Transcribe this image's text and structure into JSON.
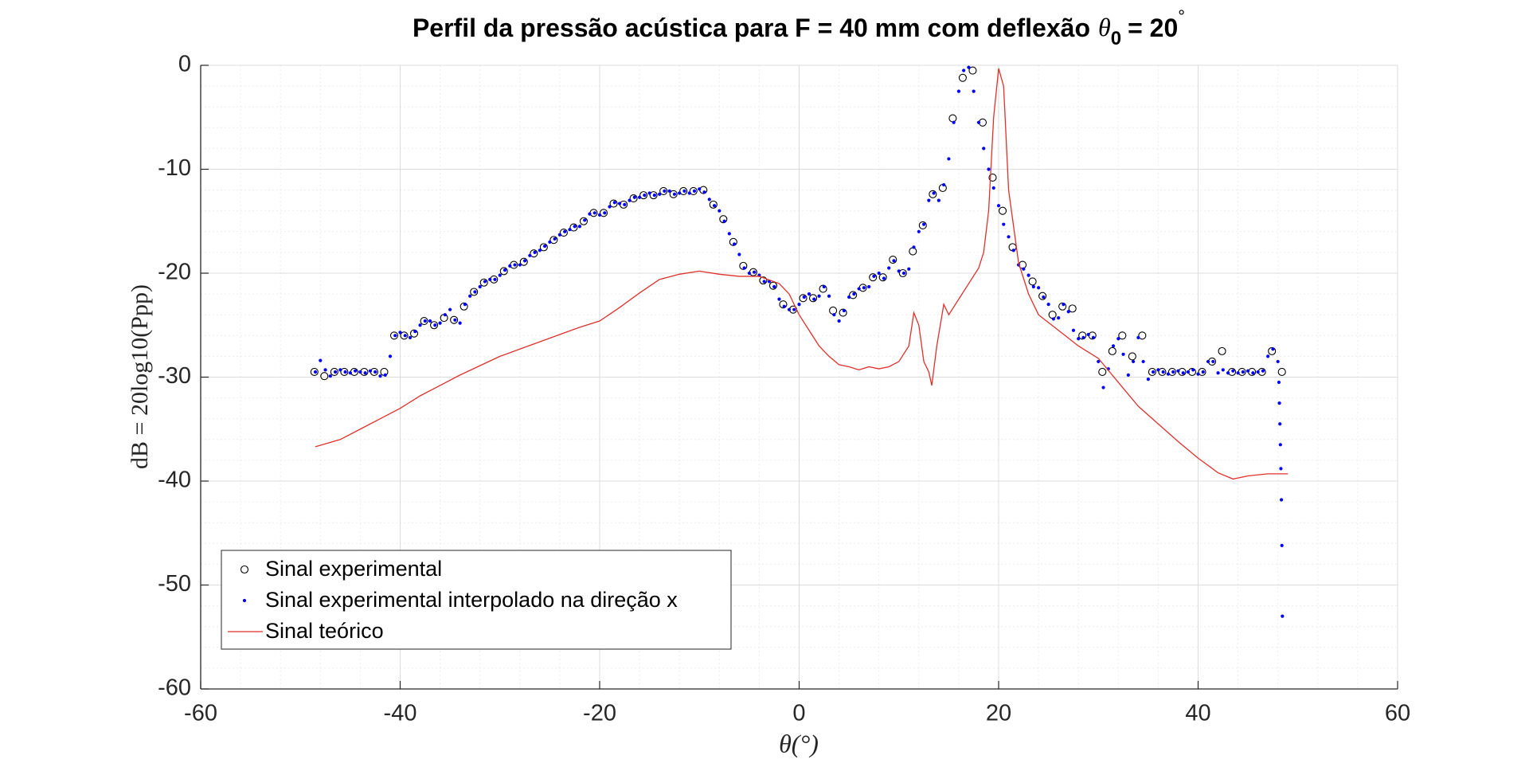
{
  "chart_data": {
    "type": "line",
    "title": {
      "text": "Perfil da pressão acústica para F = 40 mm com deflexão",
      "symbol": "θ",
      "subscript": "0",
      "rest": "= 20",
      "superscript": "°"
    },
    "xlabel": "θ(°)",
    "ylabel": "dB = 20log10(Ppp)",
    "xlim": [
      -60,
      60
    ],
    "ylim": [
      -60,
      0
    ],
    "xticks": [
      -60,
      -40,
      -20,
      0,
      20,
      40,
      60
    ],
    "yticks": [
      -60,
      -50,
      -40,
      -30,
      -20,
      -10,
      0
    ],
    "grid": true,
    "minor_grid": true,
    "legend": "lower left",
    "series": [
      {
        "name": "Sinal experimental",
        "color": "#000000",
        "marker": "circle",
        "x": [
          -48.6,
          -47.6,
          -46.6,
          -45.6,
          -44.6,
          -43.6,
          -42.6,
          -41.6,
          -40.6,
          -39.6,
          -38.6,
          -37.6,
          -36.6,
          -35.6,
          -34.6,
          -33.6,
          -32.6,
          -31.6,
          -30.6,
          -29.6,
          -28.6,
          -27.6,
          -26.6,
          -25.6,
          -24.6,
          -23.6,
          -22.6,
          -21.6,
          -20.6,
          -19.6,
          -18.6,
          -17.6,
          -16.6,
          -15.6,
          -14.6,
          -13.6,
          -12.6,
          -11.6,
          -10.6,
          -9.6,
          -8.6,
          -7.6,
          -6.6,
          -5.6,
          -4.6,
          -3.6,
          -2.6,
          -1.6,
          -0.6,
          0.4,
          1.4,
          2.4,
          3.4,
          4.4,
          5.4,
          6.4,
          7.4,
          8.4,
          9.4,
          10.4,
          11.4,
          12.4,
          13.4,
          14.4,
          15.4,
          16.4,
          17.4,
          18.4,
          19.4,
          20.4,
          21.4,
          22.4,
          23.4,
          24.4,
          25.4,
          26.4,
          27.4,
          28.4,
          29.4,
          30.4,
          31.4,
          32.4,
          33.4,
          34.4,
          35.4,
          36.4,
          37.4,
          38.4,
          39.4,
          40.4,
          41.4,
          42.4,
          43.4,
          44.4,
          45.4,
          46.4,
          47.4,
          48.4
        ],
        "values": [
          -29.5,
          -29.9,
          -29.5,
          -29.5,
          -29.5,
          -29.5,
          -29.5,
          -29.5,
          -26,
          -26,
          -25.8,
          -24.6,
          -25,
          -24.3,
          -24.5,
          -23.2,
          -21.8,
          -20.9,
          -20.6,
          -19.8,
          -19.2,
          -18.9,
          -18.1,
          -17.5,
          -16.8,
          -16.1,
          -15.6,
          -15,
          -14.2,
          -14.2,
          -13.3,
          -13.4,
          -12.8,
          -12.5,
          -12.5,
          -12.1,
          -12.4,
          -12.1,
          -12.1,
          -12,
          -13.4,
          -14.8,
          -17,
          -19.3,
          -19.9,
          -20.7,
          -21.2,
          -23,
          -23.5,
          -22.4,
          -22.4,
          -21.5,
          -23.6,
          -23.8,
          -22.1,
          -21.4,
          -20.4,
          -20.4,
          -18.7,
          -20,
          -17.9,
          -15.4,
          -12.4,
          -11.8,
          -5.1,
          -1.2,
          -0.5,
          -5.5,
          -10.8,
          -14,
          -17.5,
          -19.2,
          -20.8,
          -22.2,
          -24,
          -23.2,
          -23.4,
          -26,
          -26,
          -29.5,
          -27.5,
          -26,
          -28,
          -26,
          -29.5,
          -29.5,
          -29.5,
          -29.5,
          -29.5,
          -29.5,
          -28.5,
          -27.5,
          -29.5,
          -29.5,
          -29.5,
          -29.5,
          -27.5,
          -29.5
        ]
      },
      {
        "name": "Sinal experimental interpolado na direção x",
        "color": "#0000ff",
        "marker": "dot",
        "x": [
          -48.5,
          -48,
          -47.5,
          -47,
          -46.5,
          -46,
          -45.5,
          -45,
          -44.5,
          -44,
          -43.5,
          -43,
          -42.5,
          -42,
          -41.5,
          -41,
          -40.5,
          -40,
          -39.5,
          -39,
          -38.5,
          -38,
          -37.5,
          -37,
          -36.5,
          -36,
          -35.5,
          -35,
          -34.5,
          -34,
          -33.5,
          -33,
          -32.5,
          -32,
          -31.5,
          -31,
          -30.5,
          -30,
          -29.5,
          -29,
          -28.5,
          -28,
          -27.5,
          -27,
          -26.5,
          -26,
          -25.5,
          -25,
          -24.5,
          -24,
          -23.5,
          -23,
          -22.5,
          -22,
          -21.5,
          -21,
          -20.5,
          -20,
          -19.5,
          -19,
          -18.5,
          -18,
          -17.5,
          -17,
          -16.5,
          -16,
          -15.5,
          -15,
          -14.5,
          -14,
          -13.5,
          -13,
          -12.5,
          -12,
          -11.5,
          -11,
          -10.5,
          -10,
          -9.5,
          -9,
          -8.5,
          -8,
          -7.5,
          -7,
          -6.5,
          -6,
          -5.5,
          -5,
          -4.5,
          -4,
          -3.5,
          -3,
          -2.5,
          -2,
          -1.5,
          -1,
          -0.5,
          0,
          0.5,
          1,
          1.5,
          2,
          2.5,
          3,
          3.5,
          4,
          4.5,
          5,
          5.5,
          6,
          6.5,
          7,
          7.5,
          8,
          8.5,
          9,
          9.5,
          10,
          10.5,
          11,
          11.5,
          12,
          12.5,
          13,
          13.5,
          14,
          14.5,
          15,
          15.5,
          16,
          16.5,
          17,
          17.5,
          18,
          18.5,
          19,
          19.5,
          20,
          20.5,
          21,
          21.5,
          22,
          22.5,
          23,
          23.5,
          24,
          24.5,
          25,
          25.5,
          26,
          26.5,
          27,
          27.5,
          28,
          28.5,
          29,
          29.5,
          30,
          30.5,
          31,
          31.5,
          32,
          32.5,
          33,
          33.5,
          34,
          34.5,
          35,
          35.5,
          36,
          36.5,
          37,
          37.5,
          38,
          38.5,
          39,
          39.5,
          40,
          40.5,
          41,
          41.5,
          42,
          42.5,
          43,
          43.5,
          44,
          44.5,
          45,
          45.5,
          46,
          46.5,
          47,
          47.5,
          48,
          48.1,
          48.15,
          48.2,
          48.25,
          48.3,
          48.35,
          48.4,
          48.45
        ],
        "values": [
          -29.5,
          -28.4,
          -29.3,
          -29.9,
          -29.5,
          -29.3,
          -29.5,
          -29.6,
          -29.4,
          -29.5,
          -29.6,
          -29.4,
          -29.5,
          -29.9,
          -29.8,
          -28,
          -26,
          -25.7,
          -26,
          -26.2,
          -25.6,
          -25,
          -24.6,
          -24.6,
          -25,
          -24.8,
          -24,
          -23.5,
          -24.5,
          -24.8,
          -23,
          -22.2,
          -21.8,
          -21.3,
          -20.8,
          -20.6,
          -20.6,
          -20.2,
          -19.7,
          -19.3,
          -19.2,
          -19.2,
          -18.8,
          -18.3,
          -18,
          -17.8,
          -17.4,
          -17,
          -16.7,
          -16.3,
          -16,
          -15.8,
          -15.5,
          -15.5,
          -14.9,
          -14.3,
          -14.2,
          -14.4,
          -14.2,
          -13.6,
          -13.2,
          -13.3,
          -13.4,
          -13,
          -12.7,
          -12.7,
          -12.5,
          -12.3,
          -12.5,
          -12.4,
          -12.1,
          -12.1,
          -12.4,
          -12.3,
          -12.1,
          -12.3,
          -12.1,
          -11.9,
          -12.2,
          -12.9,
          -13.5,
          -14,
          -15,
          -16.2,
          -17.2,
          -18.2,
          -19.5,
          -20,
          -19.9,
          -20.2,
          -20.8,
          -20.8,
          -21.3,
          -22.5,
          -23.2,
          -23.5,
          -23.5,
          -23,
          -22.3,
          -22,
          -22.5,
          -22.2,
          -21.3,
          -22.2,
          -24,
          -24.6,
          -23.6,
          -22.3,
          -22,
          -21.5,
          -21.4,
          -21.3,
          -20.3,
          -20,
          -20.5,
          -19.5,
          -18.8,
          -19.8,
          -20,
          -19.6,
          -17.5,
          -16,
          -15.3,
          -13,
          -12.3,
          -13,
          -11.5,
          -9,
          -5.5,
          -2.5,
          -0.5,
          -0.2,
          -2.5,
          -5.5,
          -8,
          -10,
          -11.8,
          -13.5,
          -15.3,
          -16.5,
          -17.8,
          -19.2,
          -19.6,
          -20.2,
          -21.3,
          -21.4,
          -22.3,
          -23,
          -24.4,
          -24.3,
          -23,
          -23.7,
          -25.5,
          -26.3,
          -26.2,
          -25.9,
          -26.2,
          -28.5,
          -31,
          -29.2,
          -27,
          -26.3,
          -27.8,
          -29.8,
          -28.5,
          -26.2,
          -28.5,
          -30.2,
          -29.5,
          -29.3,
          -29.5,
          -29.7,
          -29.5,
          -29.4,
          -29.6,
          -29.5,
          -29.3,
          -29.7,
          -29.5,
          -28.5,
          -28.5,
          -29.6,
          -29.3,
          -29.6,
          -29.4,
          -29.6,
          -29.5,
          -29.4,
          -29.6,
          -29.5,
          -29.4,
          -28,
          -27.3,
          -28.5,
          -30.5,
          -32.5,
          -34.5,
          -36.5,
          -38.8,
          -41.8,
          -46.2,
          -53
        ]
      },
      {
        "name": "Sinal teórico",
        "color": "#e0302b",
        "marker": "line",
        "x": [
          -48.5,
          -46,
          -44,
          -42,
          -40,
          -38,
          -36,
          -34,
          -32,
          -30,
          -28,
          -26,
          -24,
          -22,
          -20,
          -18,
          -16,
          -14,
          -12,
          -10,
          -8,
          -6,
          -4,
          -2,
          -1,
          0,
          1,
          2,
          3,
          4,
          5,
          6,
          7,
          8,
          9,
          10,
          11,
          11.5,
          12,
          12.5,
          13,
          13.3,
          13.8,
          14.5,
          15,
          16,
          17,
          18,
          18.5,
          19,
          19.5,
          20,
          20.5,
          21,
          22,
          23,
          24,
          26,
          28,
          30,
          32,
          34,
          36,
          38,
          40,
          42,
          43.5,
          45,
          47,
          49
        ],
        "values": [
          -36.7,
          -36,
          -35,
          -34,
          -33,
          -31.8,
          -30.8,
          -29.8,
          -28.9,
          -28,
          -27.3,
          -26.6,
          -25.9,
          -25.2,
          -24.6,
          -23.3,
          -21.9,
          -20.6,
          -20.1,
          -19.8,
          -20.1,
          -20.3,
          -20.3,
          -21,
          -22,
          -24,
          -25.5,
          -27,
          -28,
          -28.8,
          -29,
          -29.3,
          -29,
          -29.2,
          -29,
          -28.5,
          -27,
          -23.8,
          -25,
          -28.5,
          -29.5,
          -30.8,
          -27,
          -23,
          -24,
          -22.5,
          -21,
          -19.5,
          -18,
          -14,
          -5,
          -0.3,
          -2,
          -12,
          -19,
          -22,
          -24,
          -25.5,
          -27,
          -28.2,
          -30.5,
          -32.8,
          -34.5,
          -36.2,
          -37.8,
          -39.2,
          -39.8,
          -39.5,
          -39.3,
          -39.3
        ]
      }
    ]
  }
}
